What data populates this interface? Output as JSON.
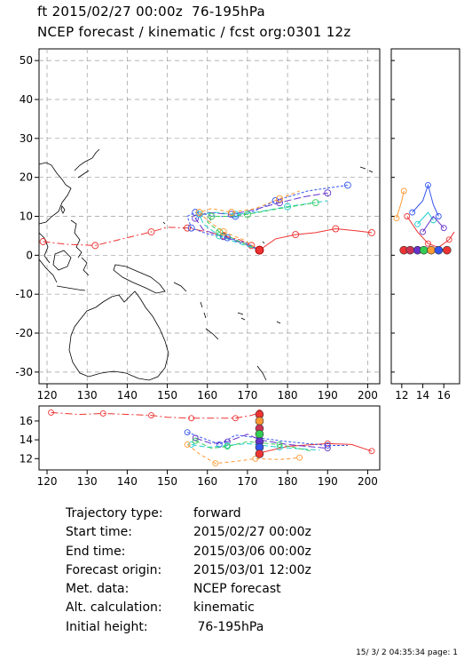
{
  "header": {
    "line1": "ft 2015/02/27 00:00z  76-195hPa",
    "line2": "NCEP forecast / kinematic / fcst org:0301 12z"
  },
  "info": [
    {
      "key": "Trajectory type:",
      "value": "forward"
    },
    {
      "key": "Start time:",
      "value": "2015/02/27 00:00z"
    },
    {
      "key": "End time:",
      "value": "2015/03/06 00:00z"
    },
    {
      "key": "Forecast origin:",
      "value": "2015/03/01 12:00z"
    },
    {
      "key": "Met. data:",
      "value": "NCEP forecast"
    },
    {
      "key": "Alt. calculation:",
      "value": "kinematic"
    },
    {
      "key": "Initial height:",
      "value": " 76-195hPa"
    }
  ],
  "footer": "15/ 3/ 2 04:35:34 page: 1",
  "colors": {
    "red": "#ee3333",
    "blue": "#3355ee",
    "cyan": "#22cccc",
    "green": "#33cc55",
    "orange": "#ff9933",
    "purple": "#6633cc",
    "darkred": "#cc3355"
  },
  "chart_data": [
    {
      "type": "line",
      "panel": "main-map",
      "xlim": [
        118,
        203
      ],
      "ylim": [
        -33,
        53
      ],
      "xticks": [
        120,
        130,
        140,
        150,
        160,
        170,
        180,
        190,
        200
      ],
      "yticks": [
        -30,
        -20,
        -10,
        0,
        10,
        20,
        30,
        40,
        50
      ],
      "grid": true,
      "series": [
        {
          "color": "red",
          "dash": "8,3,2,3",
          "points": [
            [
              119,
              3.5
            ],
            [
              125,
              2.8
            ],
            [
              132,
              2.5
            ],
            [
              140,
              4.5
            ],
            [
              146,
              6.0
            ],
            [
              150,
              7.2
            ],
            [
              155,
              7.0
            ],
            [
              160,
              6.0
            ],
            [
              164,
              5.0
            ],
            [
              168,
              4.0
            ],
            [
              171,
              2.5
            ],
            [
              173,
              1.3
            ]
          ]
        },
        {
          "color": "red",
          "dash": "none",
          "points": [
            [
              173,
              1.3
            ],
            [
              177,
              4.2
            ],
            [
              182,
              5.3
            ],
            [
              187,
              5.8
            ],
            [
              192,
              6.8
            ],
            [
              197,
              6.3
            ],
            [
              201,
              5.8
            ]
          ]
        },
        {
          "color": "blue",
          "dash": "3,2",
          "points": [
            [
              173,
              1.3
            ],
            [
              170,
              3
            ],
            [
              165,
              4.5
            ],
            [
              160,
              5.5
            ],
            [
              156,
              7
            ],
            [
              155,
              10
            ],
            [
              157,
              11
            ],
            [
              162,
              10
            ],
            [
              167,
              10
            ],
            [
              171,
              11
            ],
            [
              177,
              14
            ],
            [
              185,
              16.5
            ],
            [
              195,
              18
            ]
          ]
        },
        {
          "color": "purple",
          "dash": "8,3",
          "points": [
            [
              173,
              1.3
            ],
            [
              169,
              3
            ],
            [
              164,
              4.8
            ],
            [
              159,
              6.5
            ],
            [
              157,
              9.5
            ],
            [
              160,
              11
            ],
            [
              166,
              10.5
            ],
            [
              171,
              11.5
            ],
            [
              178,
              13.5
            ],
            [
              184,
              15
            ],
            [
              190,
              16
            ]
          ]
        },
        {
          "color": "cyan",
          "dash": "6,3",
          "points": [
            [
              173,
              1.3
            ],
            [
              168,
              3
            ],
            [
              163,
              5
            ],
            [
              159,
              8
            ],
            [
              158,
              10.5
            ],
            [
              162,
              11
            ],
            [
              167,
              10.5
            ],
            [
              172,
              11
            ],
            [
              180,
              12.5
            ],
            [
              190,
              14
            ]
          ]
        },
        {
          "color": "green",
          "dash": "5,3",
          "points": [
            [
              173,
              1.3
            ],
            [
              168,
              3.5
            ],
            [
              163,
              6
            ],
            [
              160,
              8.5
            ],
            [
              161,
              10
            ],
            [
              165,
              10
            ],
            [
              170,
              10.5
            ],
            [
              178,
              12
            ],
            [
              187,
              13.5
            ]
          ]
        },
        {
          "color": "orange",
          "dash": "4,3",
          "points": [
            [
              173,
              1.3
            ],
            [
              169,
              4
            ],
            [
              164,
              6
            ],
            [
              160,
              9
            ],
            [
              158,
              11
            ],
            [
              161,
              12
            ],
            [
              166,
              11
            ],
            [
              172,
              12
            ],
            [
              178,
              14.5
            ],
            [
              183,
              16.5
            ]
          ]
        }
      ]
    },
    {
      "type": "line",
      "panel": "right-inset",
      "xlim": [
        11,
        17.5
      ],
      "xticks": [
        12,
        14,
        16
      ],
      "series": [
        {
          "color": "orange",
          "points": [
            [
              11.5,
              9.5
            ],
            [
              12,
              14
            ],
            [
              12.2,
              16.5
            ]
          ]
        },
        {
          "color": "red",
          "points": [
            [
              12.5,
              10
            ],
            [
              13.5,
              6
            ],
            [
              14.5,
              3
            ],
            [
              15.5,
              2
            ],
            [
              16.5,
              4
            ],
            [
              17,
              6
            ]
          ]
        },
        {
          "color": "blue",
          "points": [
            [
              13,
              11
            ],
            [
              14,
              14
            ],
            [
              14.5,
              18
            ],
            [
              15,
              13
            ],
            [
              15.5,
              10
            ]
          ]
        },
        {
          "color": "cyan",
          "points": [
            [
              13.5,
              8
            ],
            [
              14.5,
              11
            ],
            [
              15,
              9
            ]
          ]
        },
        {
          "color": "purple",
          "points": [
            [
              14,
              6
            ],
            [
              15,
              10
            ],
            [
              16,
              7
            ]
          ]
        }
      ],
      "markers": [
        {
          "x": 12.2,
          "color": "red"
        },
        {
          "x": 12.8,
          "color": "darkred"
        },
        {
          "x": 13.5,
          "color": "purple"
        },
        {
          "x": 14.1,
          "color": "green"
        },
        {
          "x": 14.8,
          "color": "orange"
        },
        {
          "x": 15.5,
          "color": "blue"
        },
        {
          "x": 16.3,
          "color": "red"
        }
      ]
    },
    {
      "type": "line",
      "panel": "bottom-inset",
      "xlim": [
        118,
        203
      ],
      "ylim": [
        10.8,
        17.6
      ],
      "xticks": [
        120,
        130,
        140,
        150,
        160,
        170,
        180,
        190,
        200
      ],
      "yticks": [
        12,
        14,
        16
      ],
      "series": [
        {
          "color": "red",
          "dash": "8,3,2,3",
          "points": [
            [
              121,
              16.9
            ],
            [
              128,
              16.7
            ],
            [
              134,
              16.8
            ],
            [
              140,
              16.7
            ],
            [
              146,
              16.6
            ],
            [
              150,
              16.4
            ],
            [
              156,
              16.3
            ],
            [
              162,
              16.3
            ],
            [
              167,
              16.3
            ],
            [
              171,
              16.6
            ],
            [
              173,
              16.9
            ]
          ]
        },
        {
          "color": "red",
          "dash": "none",
          "points": [
            [
              173,
              12.6
            ],
            [
              180,
              13.3
            ],
            [
              190,
              13.6
            ],
            [
              196,
              13.5
            ],
            [
              201,
              12.8
            ]
          ]
        },
        {
          "color": "blue",
          "dash": "3,2",
          "points": [
            [
              155,
              14.8
            ],
            [
              160,
              14.0
            ],
            [
              163,
              13.5
            ],
            [
              167,
              14.5
            ],
            [
              173,
              14.2
            ],
            [
              180,
              13.8
            ],
            [
              190,
              13.4
            ],
            [
              195,
              13.4
            ]
          ]
        },
        {
          "color": "purple",
          "dash": "8,3",
          "points": [
            [
              157,
              14.2
            ],
            [
              161,
              13.6
            ],
            [
              165,
              13.8
            ],
            [
              170,
              14.6
            ],
            [
              173,
              14.0
            ],
            [
              180,
              13.5
            ],
            [
              190,
              13.1
            ]
          ]
        },
        {
          "color": "cyan",
          "dash": "6,3",
          "points": [
            [
              156,
              13.5
            ],
            [
              160,
              13.2
            ],
            [
              165,
              13.4
            ],
            [
              170,
              13.6
            ],
            [
              178,
              13.2
            ],
            [
              188,
              12.9
            ]
          ]
        },
        {
          "color": "green",
          "dash": "5,3",
          "points": [
            [
              157,
              13.9
            ],
            [
              161,
              13.1
            ],
            [
              165,
              13.3
            ],
            [
              170,
              13.8
            ],
            [
              178,
              13.5
            ],
            [
              186,
              12.8
            ]
          ]
        },
        {
          "color": "orange",
          "dash": "4,3",
          "points": [
            [
              155,
              13.5
            ],
            [
              158,
              12.5
            ],
            [
              162,
              11.5
            ],
            [
              167,
              11.7
            ],
            [
              172,
              12.0
            ],
            [
              178,
              11.9
            ],
            [
              183,
              12.1
            ]
          ]
        }
      ],
      "markers": [
        {
          "y": 16.7,
          "color": "red"
        },
        {
          "y": 16.0,
          "color": "orange"
        },
        {
          "y": 15.2,
          "color": "darkred"
        },
        {
          "y": 14.6,
          "color": "green"
        },
        {
          "y": 13.8,
          "color": "purple"
        },
        {
          "y": 13.2,
          "color": "blue"
        },
        {
          "y": 12.5,
          "color": "red"
        }
      ]
    }
  ]
}
